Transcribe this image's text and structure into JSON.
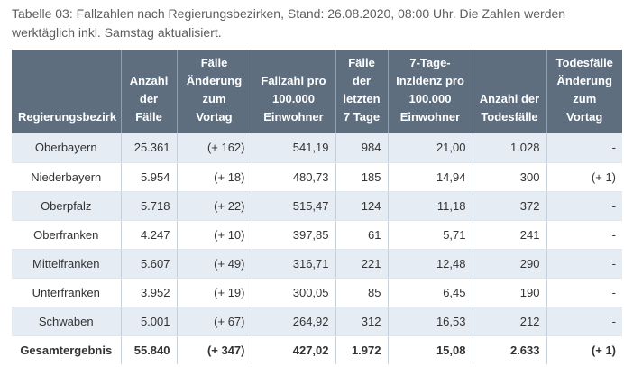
{
  "caption": "Tabelle 03: Fallzahlen nach Regierungsbezirken, Stand: 26.08.2020, 08:00 Uhr. Die Zahlen werden werktäglich inkl. Samstag aktualisiert.",
  "table": {
    "headers": [
      [
        "Regierungsbezirk"
      ],
      [
        "Anzahl",
        "der",
        "Fälle"
      ],
      [
        "Fälle",
        "Änderung",
        "zum",
        "Vortag"
      ],
      [
        "Fallzahl pro",
        "100.000",
        "Einwohner"
      ],
      [
        "Fälle",
        "der",
        "letzten",
        "7 Tage"
      ],
      [
        "7-Tage-",
        "Inzidenz pro",
        "100.000",
        "Einwohner"
      ],
      [
        "Anzahl der",
        "Todesfälle"
      ],
      [
        "Todesfälle",
        "Änderung",
        "zum Vortag"
      ]
    ],
    "rows": [
      [
        "Oberbayern",
        "25.361",
        "(+ 162)",
        "541,19",
        "984",
        "21,00",
        "1.028",
        "-"
      ],
      [
        "Niederbayern",
        "5.954",
        "(+ 18)",
        "480,73",
        "185",
        "14,94",
        "300",
        "(+ 1)"
      ],
      [
        "Oberpfalz",
        "5.718",
        "(+ 22)",
        "515,47",
        "124",
        "11,18",
        "372",
        "-"
      ],
      [
        "Oberfranken",
        "4.247",
        "(+ 10)",
        "397,85",
        "61",
        "5,71",
        "241",
        "-"
      ],
      [
        "Mittelfranken",
        "5.607",
        "(+ 49)",
        "316,71",
        "221",
        "12,48",
        "290",
        "-"
      ],
      [
        "Unterfranken",
        "3.952",
        "(+ 19)",
        "300,05",
        "85",
        "6,45",
        "190",
        "-"
      ],
      [
        "Schwaben",
        "5.001",
        "(+ 67)",
        "264,92",
        "312",
        "16,53",
        "212",
        "-"
      ]
    ],
    "total": [
      "Gesamtergebnis",
      "55.840",
      "(+ 347)",
      "427,02",
      "1.972",
      "15,08",
      "2.633",
      "(+ 1)"
    ]
  }
}
